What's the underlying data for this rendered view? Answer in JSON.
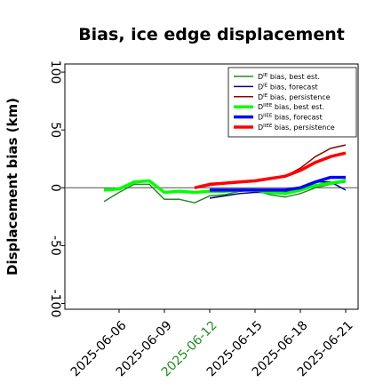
{
  "chart_data": {
    "type": "line",
    "title": "Bias, ice edge displacement",
    "xlabel": "",
    "ylabel": "Displacement bias (km)",
    "ylim": [
      -105,
      107
    ],
    "yticks": [
      -100,
      -50,
      0,
      50,
      100
    ],
    "xticks": [
      "2025-06-06",
      "2025-06-09",
      "2025-06-12",
      "2025-06-15",
      "2025-06-18",
      "2025-06-21"
    ],
    "highlight_tick": "2025-06-12",
    "highlight_color": "#228B22",
    "x_start": "2025-06-04",
    "zero_line": true,
    "legend_position": "upper right",
    "series": [
      {
        "name": "D^IE bias, best est.",
        "label_base": "D",
        "label_sup": "IE",
        "label_rest": " bias, best est.",
        "color": "#228B22",
        "width": 1.5,
        "x": [
          "2025-06-05",
          "2025-06-06",
          "2025-06-07",
          "2025-06-08",
          "2025-06-09",
          "2025-06-10",
          "2025-06-11",
          "2025-06-12",
          "2025-06-13",
          "2025-06-14",
          "2025-06-15",
          "2025-06-16",
          "2025-06-17",
          "2025-06-18",
          "2025-06-19",
          "2025-06-20",
          "2025-06-21"
        ],
        "y": [
          -12,
          -4,
          3,
          3,
          -10,
          -10,
          -13,
          -7,
          -6,
          -3,
          -2,
          -6,
          -8,
          -5,
          0,
          3,
          5
        ]
      },
      {
        "name": "D^IE bias, forecast",
        "label_base": "D",
        "label_sup": "IE",
        "label_rest": " bias, forecast",
        "color": "#00008B",
        "width": 1.5,
        "x": [
          "2025-06-12",
          "2025-06-13",
          "2025-06-14",
          "2025-06-15",
          "2025-06-16",
          "2025-06-17",
          "2025-06-18",
          "2025-06-19",
          "2025-06-20",
          "2025-06-21"
        ],
        "y": [
          -9,
          -7,
          -5,
          -4,
          -4,
          -4,
          0,
          5,
          5,
          -2
        ]
      },
      {
        "name": "D^IE bias, persistence",
        "label_base": "D",
        "label_sup": "IE",
        "label_rest": " bias, persistence",
        "color": "#8B0000",
        "width": 1.5,
        "x": [
          "2025-06-11",
          "2025-06-12",
          "2025-06-13",
          "2025-06-14",
          "2025-06-15",
          "2025-06-16",
          "2025-06-17",
          "2025-06-18",
          "2025-06-19",
          "2025-06-20",
          "2025-06-21"
        ],
        "y": [
          0,
          2,
          4,
          5,
          6,
          8,
          10,
          17,
          27,
          34,
          37
        ]
      },
      {
        "name": "D^IIEE bias, best est.",
        "label_base": "D",
        "label_sup": "IIEE",
        "label_rest": " bias, best est.",
        "color": "#00FF00",
        "width": 3.5,
        "x": [
          "2025-06-05",
          "2025-06-06",
          "2025-06-07",
          "2025-06-08",
          "2025-06-09",
          "2025-06-10",
          "2025-06-11",
          "2025-06-12",
          "2025-06-13",
          "2025-06-14",
          "2025-06-15",
          "2025-06-16",
          "2025-06-17",
          "2025-06-18",
          "2025-06-19",
          "2025-06-20",
          "2025-06-21"
        ],
        "y": [
          -2,
          -1,
          5,
          6,
          -4,
          -3,
          -4,
          -3,
          -3,
          -2,
          -2,
          -4,
          -5,
          -2,
          2,
          4,
          6
        ]
      },
      {
        "name": "D^IIEE bias, forecast",
        "label_base": "D",
        "label_sup": "IIEE",
        "label_rest": " bias, forecast",
        "color": "#0000FF",
        "width": 3.5,
        "x": [
          "2025-06-12",
          "2025-06-13",
          "2025-06-14",
          "2025-06-15",
          "2025-06-16",
          "2025-06-17",
          "2025-06-18",
          "2025-06-19",
          "2025-06-20",
          "2025-06-21"
        ],
        "y": [
          -2,
          -2,
          -2,
          -2,
          -2,
          -2,
          0,
          5,
          9,
          9
        ]
      },
      {
        "name": "D^IIEE bias, persistence",
        "label_base": "D",
        "label_sup": "IIEE",
        "label_rest": " bias, persistence",
        "color": "#FF0000",
        "width": 3.5,
        "x": [
          "2025-06-11",
          "2025-06-12",
          "2025-06-13",
          "2025-06-14",
          "2025-06-15",
          "2025-06-16",
          "2025-06-17",
          "2025-06-18",
          "2025-06-19",
          "2025-06-20",
          "2025-06-21"
        ],
        "y": [
          0,
          3,
          4,
          5,
          6,
          8,
          10,
          15,
          22,
          27,
          30
        ]
      }
    ]
  }
}
